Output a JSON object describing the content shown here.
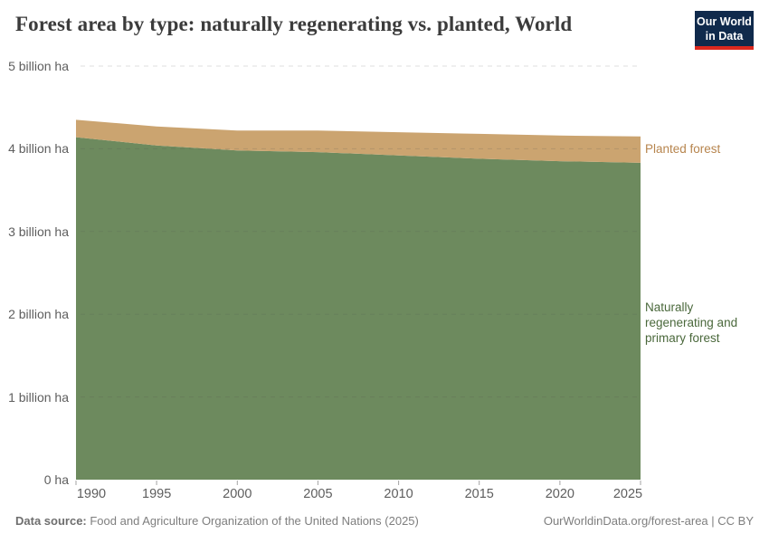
{
  "header": {
    "title": "Forest area by type: naturally regenerating vs. planted, World",
    "logo": {
      "line1": "Our World",
      "line2": "in Data",
      "bg_color": "#102a4c",
      "accent_color": "#dc281e"
    }
  },
  "chart_data": {
    "type": "area",
    "stacked": true,
    "title": "Forest area by type: naturally regenerating vs. planted, World",
    "unit": "billion ha",
    "x": [
      1990,
      1995,
      2000,
      2005,
      2010,
      2015,
      2020,
      2025
    ],
    "series": [
      {
        "name": "Naturally regenerating and primary forest",
        "values": [
          4.14,
          4.04,
          3.98,
          3.96,
          3.92,
          3.88,
          3.85,
          3.83
        ],
        "color": "#6d8a5e",
        "label_color": "#4a683b"
      },
      {
        "name": "Planted forest",
        "values": [
          0.21,
          0.23,
          0.24,
          0.26,
          0.28,
          0.3,
          0.31,
          0.32
        ],
        "color": "#cba470",
        "label_color": "#b7854e"
      }
    ],
    "ylim": [
      0,
      5
    ],
    "yticks": [
      {
        "value": 5,
        "label": "5 billion ha"
      },
      {
        "value": 4,
        "label": "4 billion ha"
      },
      {
        "value": 3,
        "label": "3 billion ha"
      },
      {
        "value": 2,
        "label": "2 billion ha"
      },
      {
        "value": 1,
        "label": "1 billion ha"
      },
      {
        "value": 0,
        "label": "0 ha"
      }
    ],
    "xticks": [
      1990,
      1995,
      2000,
      2005,
      2010,
      2015,
      2020,
      2025
    ],
    "grid": "horizontal dashed",
    "legend_position": "right-edge labels"
  },
  "footer": {
    "source_label": "Data source:",
    "source_text": " Food and Agriculture Organization of the United Nations (2025)",
    "credit": "OurWorldinData.org/forest-area | CC BY"
  }
}
